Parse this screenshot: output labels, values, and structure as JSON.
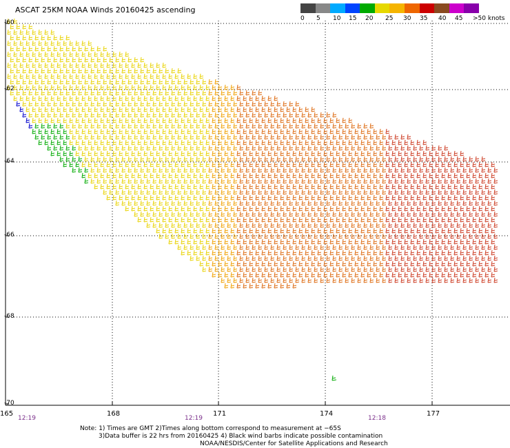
{
  "title": "ASCAT 25KM NOAA Winds 20160425 ascending",
  "colorbar": {
    "ticks": [
      "0",
      "5",
      "10",
      "15",
      "20",
      "25",
      "30",
      "35",
      "40",
      "45",
      ">50 knots"
    ],
    "colors": [
      "#444444",
      "#888888",
      "#00aaff",
      "#0044ff",
      "#00aa00",
      "#e6d800",
      "#f5b400",
      "#ee6600",
      "#cc0000",
      "#8a4a20",
      "#cc00cc",
      "#8800aa"
    ]
  },
  "latitudes": [
    "-60",
    "-62",
    "-64",
    "-66",
    "-68",
    "-70"
  ],
  "longitudes": [
    "165",
    "168",
    "171",
    "174",
    "177"
  ],
  "times": [
    "12:19",
    "12:19",
    "12:18"
  ],
  "notes": {
    "line1": "Note: 1) Times are GMT 2)Times along bottom correspond to measurement at −65S",
    "line2": "3)Data buffer is 22 hrs from 20160425 4) Black wind barbs indicate possible contamination",
    "line3": "NOAA/NESDIS/Center for Satellite Applications and Research"
  },
  "wind_colors": {
    "blue": "#0000cc",
    "green": "#00aa00",
    "yellow": "#e8d200",
    "light_orange": "#f0a000",
    "orange": "#dd6a10",
    "red_orange": "#cc3a20"
  }
}
